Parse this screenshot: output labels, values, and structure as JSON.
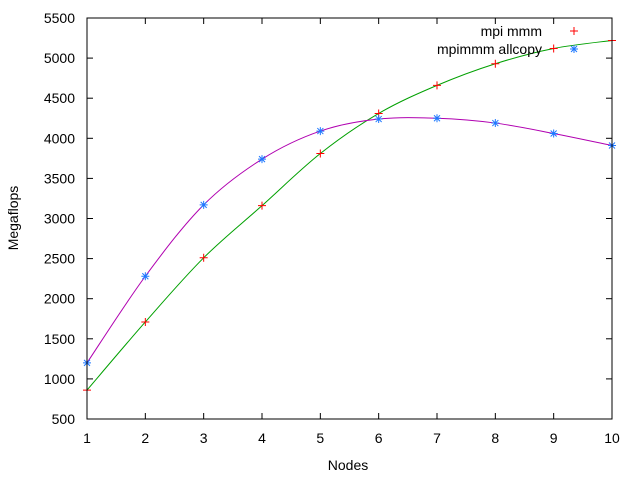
{
  "chart_data": {
    "type": "scatter",
    "title": "",
    "xlabel": "Nodes",
    "ylabel": "Megaflops",
    "xlim": [
      1,
      10
    ],
    "ylim": [
      500,
      5500
    ],
    "xticks": [
      1,
      2,
      3,
      4,
      5,
      6,
      7,
      8,
      9,
      10
    ],
    "yticks": [
      500,
      1000,
      1500,
      2000,
      2500,
      3000,
      3500,
      4000,
      4500,
      5000,
      5500
    ],
    "grid": false,
    "legend_position": "top-right",
    "series": [
      {
        "name": "mpi mmm",
        "marker": "plus",
        "marker_color": "#ff0000",
        "fit_color": "#00a000",
        "x": [
          1,
          2,
          3,
          4,
          5,
          6,
          7,
          8,
          9,
          10
        ],
        "y": [
          860,
          1710,
          2510,
          3160,
          3810,
          4310,
          4660,
          4930,
          5120,
          5220
        ]
      },
      {
        "name": "mpimmm allcopy",
        "marker": "star",
        "marker_color": "#1e78ff",
        "fit_color": "#b000b0",
        "x": [
          1,
          2,
          3,
          4,
          5,
          6,
          7,
          8,
          9,
          10
        ],
        "y": [
          1200,
          2280,
          3170,
          3740,
          4090,
          4240,
          4250,
          4190,
          4060,
          3910
        ]
      }
    ]
  }
}
